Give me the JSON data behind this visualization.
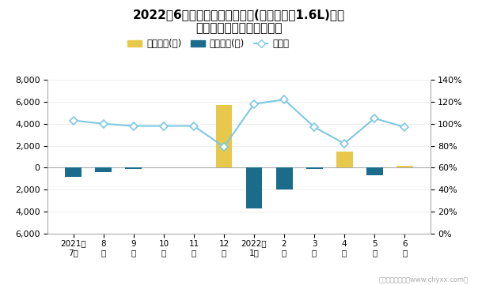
{
  "title": "2022年6月轩逸旗下最畅销轿车(十四代轩逸1.6L)近一\n年库存情况及产销率统计图",
  "categories": [
    "2021年\n7月",
    "8\n月",
    "9\n月",
    "10\n月",
    "11\n月",
    "12\n月",
    "2022年\n1月",
    "2\n月",
    "3\n月",
    "4\n月",
    "5\n月",
    "6\n月"
  ],
  "jinya_values": [
    0,
    0,
    0,
    0,
    0,
    5700,
    0,
    0,
    0,
    1500,
    0,
    200
  ],
  "qingcang_values": [
    -800,
    -400,
    -100,
    0,
    0,
    0,
    -3700,
    -2000,
    -100,
    0,
    -700,
    0
  ],
  "chanxiao_rate": [
    1.03,
    1.0,
    0.98,
    0.98,
    0.98,
    0.79,
    1.18,
    1.22,
    0.97,
    0.82,
    1.05,
    0.97
  ],
  "bar_width": 0.55,
  "jinya_color": "#E8C84A",
  "qingcang_color": "#1B6B8A",
  "line_color": "#7EC8E3",
  "ylim_left": [
    -6000,
    8000
  ],
  "ylim_right": [
    0,
    1.4
  ],
  "yticks_left": [
    -6000,
    -4000,
    -2000,
    0,
    2000,
    4000,
    6000,
    8000
  ],
  "yticks_right": [
    0.0,
    0.2,
    0.4,
    0.6,
    0.8,
    1.0,
    1.2,
    1.4
  ],
  "bg_color": "#FFFFFF",
  "legend_jinya": "积压库存(辆)",
  "legend_qingcang": "清仓库存(辆)",
  "legend_chanxiao": "产销率",
  "watermark": "制图：智研咨询（www.chyxx.com）"
}
